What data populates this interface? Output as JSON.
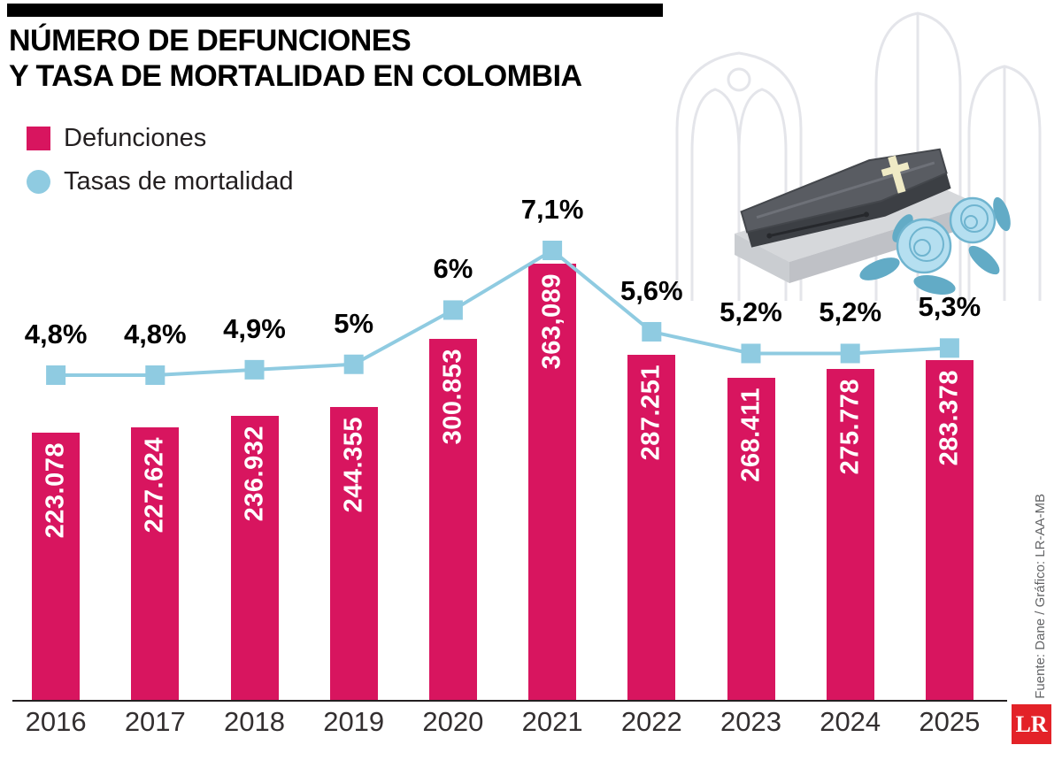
{
  "header": {
    "title_line1": "NÚMERO DE DEFUNCIONES",
    "title_line2": "Y TASA DE MORTALIDAD EN COLOMBIA"
  },
  "legend": {
    "bars_label": "Defunciones",
    "line_label": "Tasas de mortalidad"
  },
  "colors": {
    "bar": "#d8155f",
    "line": "#8fcbe1",
    "logo_red": "#e32228",
    "axis": "#231f20"
  },
  "source": "Fuente: Dane / Gráfico: LR-AA-MB",
  "logo": "LR",
  "chart_data": {
    "type": "bar+line",
    "title": "Número de defunciones y tasa de mortalidad en Colombia",
    "categories": [
      "2016",
      "2017",
      "2018",
      "2019",
      "2020",
      "2021",
      "2022",
      "2023",
      "2024",
      "2025"
    ],
    "series": [
      {
        "name": "Defunciones",
        "type": "bar",
        "color": "#d8155f",
        "values": [
          223078,
          227624,
          236932,
          244355,
          300853,
          363089,
          287251,
          268411,
          275778,
          283378
        ],
        "labels": [
          "223.078",
          "227.624",
          "236.932",
          "244.355",
          "300.853",
          "363,089",
          "287.251",
          "268.411",
          "275.778",
          "283.378"
        ]
      },
      {
        "name": "Tasas de mortalidad",
        "type": "line",
        "color": "#8fcbe1",
        "values": [
          4.8,
          4.8,
          4.9,
          5,
          6,
          7.1,
          5.6,
          5.2,
          5.2,
          5.3
        ],
        "labels": [
          "4,8%",
          "4,8%",
          "4,9%",
          "5%",
          "6%",
          "7,1%",
          "5,6%",
          "5,2%",
          "5,2%",
          "5,3%"
        ]
      }
    ],
    "xlabel": "",
    "ylabel": "",
    "grid": false,
    "legend_position": "top-left",
    "value_label_style": "rotated-inside-bars",
    "rate_label_style": "above-square-markers"
  }
}
